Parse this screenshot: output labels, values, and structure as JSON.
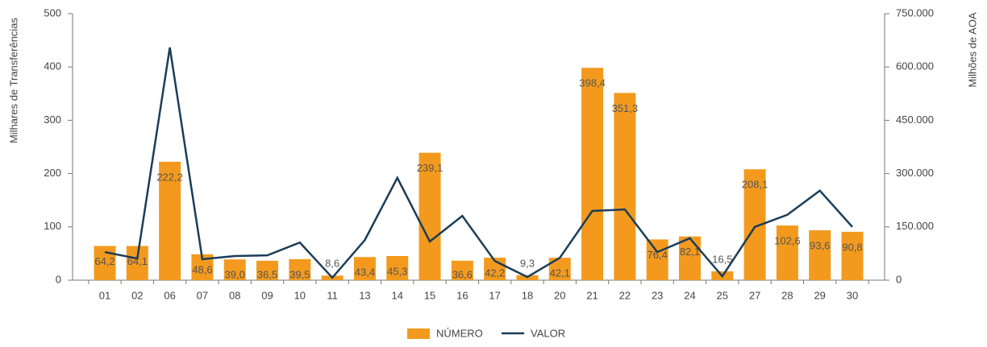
{
  "chart_data": {
    "type": "bar",
    "categories": [
      "01",
      "02",
      "06",
      "07",
      "08",
      "09",
      "10",
      "11",
      "13",
      "14",
      "15",
      "16",
      "17",
      "18",
      "20",
      "21",
      "22",
      "23",
      "24",
      "25",
      "27",
      "28",
      "29",
      "30"
    ],
    "ylabel": "Milhares de Transferências",
    "y2label": "Milhões de AOA",
    "ylim": [
      0,
      500
    ],
    "yticks": [
      0,
      100,
      200,
      300,
      400,
      500
    ],
    "y2lim": [
      0,
      750000
    ],
    "y2ticks": [
      0,
      {
        "value": 150000,
        "label": "150.000"
      },
      {
        "value": 300000,
        "label": "300.000"
      },
      {
        "value": 450000,
        "label": "450.000"
      },
      {
        "value": 600000,
        "label": "600.000"
      },
      {
        "value": 750000,
        "label": "750.000"
      }
    ],
    "series": [
      {
        "name": "NÚMERO",
        "type": "bar",
        "color": "#f39a1e",
        "values": [
          64.2,
          64.1,
          222.2,
          48.6,
          39.0,
          36.5,
          39.5,
          8.6,
          43.4,
          45.3,
          239.1,
          36.6,
          42.2,
          9.3,
          42.1,
          398.4,
          351.3,
          76.4,
          82.1,
          16.5,
          208.1,
          102.6,
          93.6,
          90.8
        ],
        "value_labels": [
          "64,2",
          "64,1",
          "222,2",
          "48,6",
          "39,0",
          "36,5",
          "39,5",
          "8,6",
          "43,4",
          "45,3",
          "239,1",
          "36,6",
          "42,2",
          "9,3",
          "42,1",
          "398,4",
          "351,3",
          "76,4",
          "82,1",
          "16,5",
          "208,1",
          "102,6",
          "93,6",
          "90,8"
        ]
      },
      {
        "name": "VALOR",
        "type": "line",
        "axis": "y2",
        "color": "#1b3d58",
        "values": [
          79000,
          61000,
          655000,
          59000,
          68000,
          70000,
          106000,
          7000,
          113000,
          288000,
          109000,
          181000,
          54000,
          9000,
          63000,
          195000,
          199000,
          79000,
          118000,
          11000,
          150000,
          184000,
          252000,
          150000
        ]
      }
    ]
  }
}
